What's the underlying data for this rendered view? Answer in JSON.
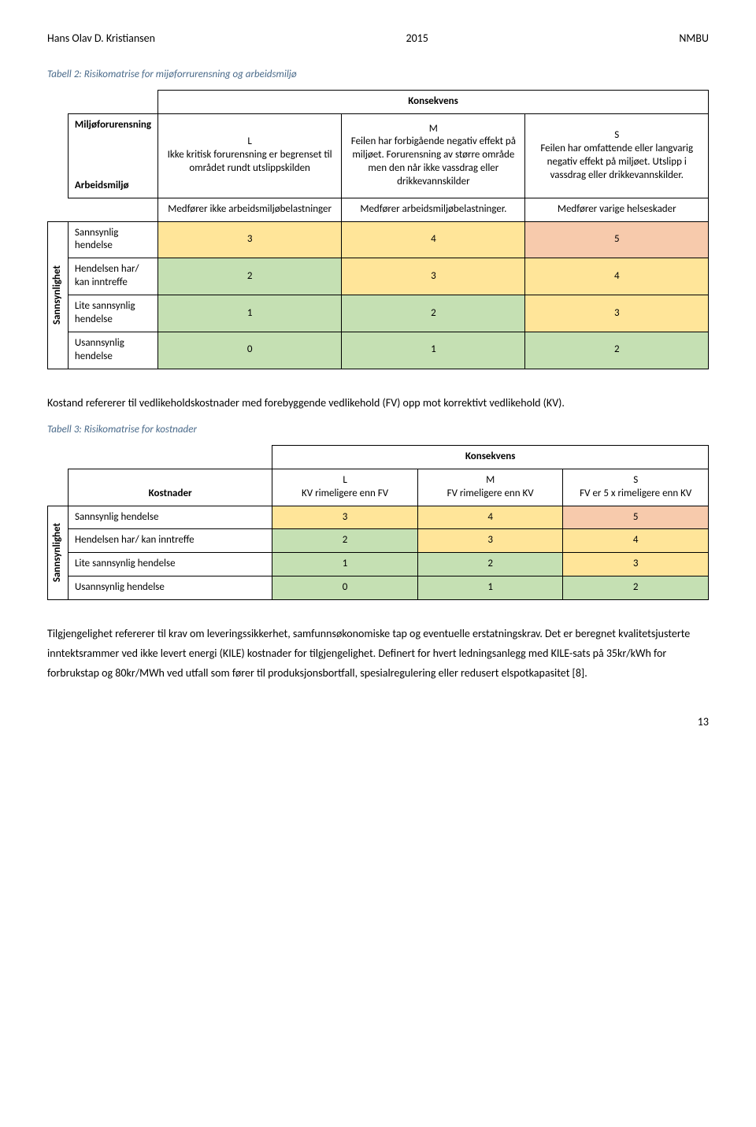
{
  "header": {
    "author": "Hans Olav D. Kristiansen",
    "year": "2015",
    "institution": "NMBU"
  },
  "table2": {
    "caption": "Tabell 2: Risikomatrise for mijøforrurensning og arbeidsmiljø",
    "konsekvens": "Konsekvens",
    "row_label1": "Miljøforurensning",
    "row_label2": "Arbeidsmiljø",
    "L": "L\nIkke kritisk forurensning er begrenset til området rundt utslippskilden",
    "M": "M\nFeilen har forbigående negativ effekt på miljøet. Forurensning av større område men den når ikke vassdrag eller drikkevannskilder",
    "S": "S\nFeilen har omfattende eller langvarig negativ effekt på miljøet. Utslipp i vassdrag eller drikkevannskilder.",
    "arb_L": "Medfører ikke arbeidsmiljøbelastninger",
    "arb_M": "Medfører arbeidsmiljøbelastninger.",
    "arb_S": "Medfører varige helseskader",
    "sannsyn_label": "Sannsynlighet",
    "rows": [
      {
        "label": "Sannsynlig hendelse",
        "v": [
          "3",
          "4",
          "5"
        ],
        "c": [
          "yellow",
          "yellow",
          "pink"
        ]
      },
      {
        "label": "Hendelsen har/ kan inntreffe",
        "v": [
          "2",
          "3",
          "4"
        ],
        "c": [
          "green",
          "yellow",
          "yellow"
        ]
      },
      {
        "label": "Lite sannsynlig hendelse",
        "v": [
          "1",
          "2",
          "3"
        ],
        "c": [
          "green",
          "green",
          "yellow"
        ]
      },
      {
        "label": "Usannsynlig hendelse",
        "v": [
          "0",
          "1",
          "2"
        ],
        "c": [
          "green",
          "green",
          "green"
        ]
      }
    ]
  },
  "midtext": "Kostand refererer til vedlikeholdskostnader med forebyggende vedlikehold (FV) opp mot korrektivt vedlikehold (KV).",
  "table3": {
    "caption": "Tabell 3: Risikomatrise for kostnader",
    "konsekvens": "Konsekvens",
    "kostnader": "Kostnader",
    "L": "L\nKV rimeligere enn FV",
    "M": "M\nFV rimeligere enn KV",
    "S": "S\nFV er 5 x rimeligere enn KV",
    "sannsyn_label": "Sannsynlighet",
    "rows": [
      {
        "label": "Sannsynlig hendelse",
        "v": [
          "3",
          "4",
          "5"
        ],
        "c": [
          "yellow",
          "yellow",
          "pink"
        ]
      },
      {
        "label": "Hendelsen har/ kan inntreffe",
        "v": [
          "2",
          "3",
          "4"
        ],
        "c": [
          "green",
          "yellow",
          "yellow"
        ]
      },
      {
        "label": "Lite sannsynlig hendelse",
        "v": [
          "1",
          "2",
          "3"
        ],
        "c": [
          "green",
          "green",
          "yellow"
        ]
      },
      {
        "label": "Usannsynlig hendelse",
        "v": [
          "0",
          "1",
          "2"
        ],
        "c": [
          "green",
          "green",
          "green"
        ]
      }
    ]
  },
  "bottomtext": "Tilgjengelighet refererer til krav om leveringssikkerhet, samfunnsøkonomiske tap og eventuelle erstatningskrav. Det er beregnet kvalitetsjusterte inntektsrammer ved ikke levert energi (KILE) kostnader for tilgjengelighet. Definert for hvert ledningsanlegg med KILE-sats på 35kr/kWh for forbrukstap og 80kr/MWh ved utfall som fører til produksjonsbortfall, spesialregulering eller redusert elspotkapasitet [8].",
  "page": "13"
}
